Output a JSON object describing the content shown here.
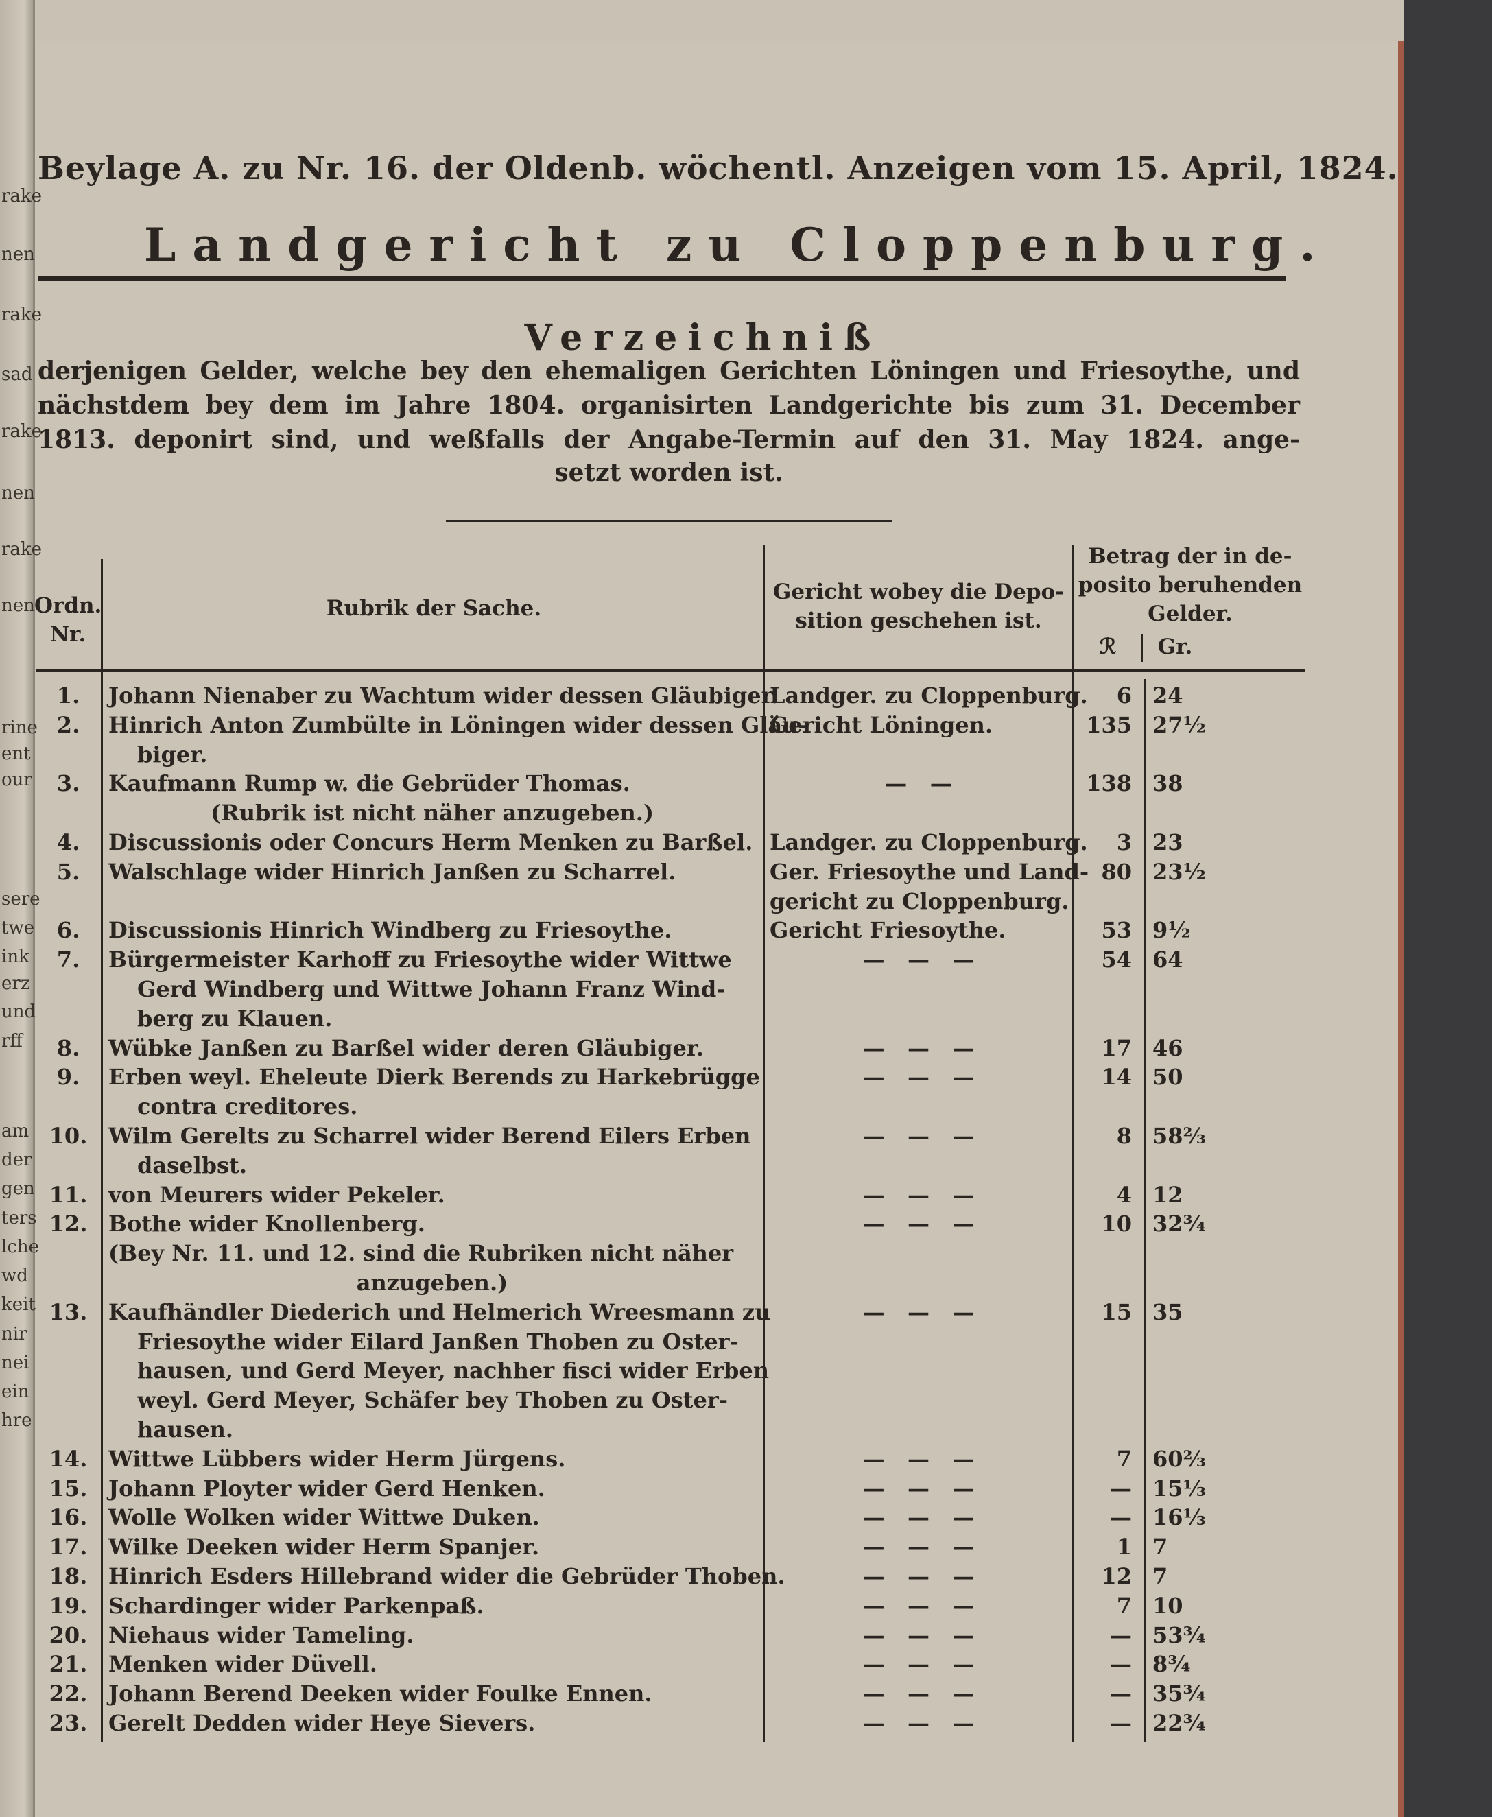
{
  "prev_page_fragments": [
    "rake",
    "nen",
    "rake",
    "sad",
    "rake",
    "nen",
    "rake",
    "nen",
    "rine",
    "ent",
    "our",
    "sere",
    "twe",
    "ink",
    "erz",
    "und",
    "rff",
    "am",
    "der",
    "gen",
    "ters",
    "lche",
    "wd",
    "keit",
    "nir",
    "nei",
    "ein",
    "hre"
  ],
  "header": "Beylage A. zu Nr. 16. der Oldenb. wöchentl. Anzeigen vom 15. April, 1824.",
  "title": "Landgericht zu Cloppenburg.",
  "subtitle": "Verzeichniß",
  "intro_lines": [
    "derjenigen Gelder, welche bey den ehemaligen Gerichten Löningen und Friesoythe, und",
    "nächstdem bey dem im Jahre 1804. organisirten Landgerichte bis zum 31. December",
    "1813. deponirt sind, und weßfalls der Angabe-Termin auf den 31. May 1824. ange-",
    "setzt worden ist."
  ],
  "table": {
    "headers": {
      "nr": [
        "Ordn.",
        "Nr."
      ],
      "rubrik": "Rubrik der Sache.",
      "gericht": [
        "Gericht wobey die Depo-",
        "sition geschehen ist."
      ],
      "betrag": [
        "Betrag der in de-",
        "posito beruhenden",
        "Gelder."
      ],
      "taler": "ℛ",
      "groschen": "Gr."
    },
    "rows": [
      {
        "nr": "1.",
        "rubrik": [
          "Johann Nienaber zu Wachtum wider dessen Gläubiger."
        ],
        "gericht": [
          "Landger. zu Cloppenburg."
        ],
        "taler": "6",
        "groschen": "24"
      },
      {
        "nr": "2.",
        "rubrik": [
          "Hinrich Anton Zumbülte in Löningen wider dessen Gläu-",
          "biger."
        ],
        "gericht": [
          "Gericht Löningen."
        ],
        "taler": "135",
        "groschen": "27½"
      },
      {
        "nr": "3.",
        "rubrik": [
          "Kaufmann Rump w. die Gebrüder Thomas.",
          "(Rubrik ist nicht näher anzugeben.)"
        ],
        "gericht": [
          "—   —"
        ],
        "taler": "138",
        "groschen": "38"
      },
      {
        "nr": "4.",
        "rubrik": [
          "Discussionis oder Concurs Herm Menken zu Barßel."
        ],
        "gericht": [
          "Landger. zu Cloppenburg."
        ],
        "taler": "3",
        "groschen": "23"
      },
      {
        "nr": "5.",
        "rubrik": [
          "Walschlage wider Hinrich Janßen zu Scharrel."
        ],
        "gericht": [
          "Ger. Friesoythe und Land-",
          "gericht zu Cloppenburg."
        ],
        "taler": "80",
        "groschen": "23½"
      },
      {
        "nr": "6.",
        "rubrik": [
          "Discussionis Hinrich Windberg zu Friesoythe."
        ],
        "gericht": [
          "Gericht Friesoythe."
        ],
        "taler": "53",
        "groschen": "9½"
      },
      {
        "nr": "7.",
        "rubrik": [
          "Bürgermeister Karhoff zu Friesoythe wider Wittwe",
          "Gerd Windberg und Wittwe Johann Franz Wind-",
          "berg zu Klauen."
        ],
        "gericht": [
          "—   —   —"
        ],
        "taler": "54",
        "groschen": "64"
      },
      {
        "nr": "8.",
        "rubrik": [
          "Wübke Janßen zu Barßel wider deren Gläubiger."
        ],
        "gericht": [
          "—   —   —"
        ],
        "taler": "17",
        "groschen": "46"
      },
      {
        "nr": "9.",
        "rubrik": [
          "Erben weyl. Eheleute Dierk Berends zu Harkebrügge",
          "contra creditores."
        ],
        "gericht": [
          "—   —   —"
        ],
        "taler": "14",
        "groschen": "50"
      },
      {
        "nr": "10.",
        "rubrik": [
          "Wilm Gerelts zu Scharrel wider Berend Eilers Erben",
          "daselbst."
        ],
        "gericht": [
          "—   —   —"
        ],
        "taler": "8",
        "groschen": "58⅔"
      },
      {
        "nr": "11.",
        "rubrik": [
          "von Meurers wider Pekeler."
        ],
        "gericht": [
          "—   —   —"
        ],
        "taler": "4",
        "groschen": "12"
      },
      {
        "nr": "12.",
        "rubrik": [
          "Bothe wider Knollenberg."
        ],
        "gericht": [
          "—   —   —"
        ],
        "taler": "10",
        "groschen": "32¾"
      },
      {
        "nr": "",
        "rubrik": [
          "(Bey Nr. 11. und 12. sind die Rubriken nicht näher",
          "anzugeben.)"
        ],
        "gericht": [],
        "taler": "",
        "groschen": ""
      },
      {
        "nr": "13.",
        "rubrik": [
          "Kaufhändler Diederich und Helmerich Wreesmann zu",
          "Friesoythe wider Eilard Janßen Thoben zu Oster-",
          "hausen, und Gerd Meyer, nachher fisci wider Erben",
          "weyl. Gerd Meyer, Schäfer bey Thoben zu Oster-",
          "hausen."
        ],
        "gericht": [
          "—   —   —"
        ],
        "taler": "15",
        "groschen": "35"
      },
      {
        "nr": "14.",
        "rubrik": [
          "Wittwe Lübbers wider Herm Jürgens."
        ],
        "gericht": [
          "—   —   —"
        ],
        "taler": "7",
        "groschen": "60⅔"
      },
      {
        "nr": "15.",
        "rubrik": [
          "Johann Ployter wider Gerd Henken."
        ],
        "gericht": [
          "—   —   —"
        ],
        "taler": "—",
        "groschen": "15⅓"
      },
      {
        "nr": "16.",
        "rubrik": [
          "Wolle Wolken wider Wittwe Duken."
        ],
        "gericht": [
          "—   —   —"
        ],
        "taler": "—",
        "groschen": "16⅓"
      },
      {
        "nr": "17.",
        "rubrik": [
          "Wilke Deeken wider Herm Spanjer."
        ],
        "gericht": [
          "—   —   —"
        ],
        "taler": "1",
        "groschen": "7"
      },
      {
        "nr": "18.",
        "rubrik": [
          "Hinrich Esders Hillebrand wider die Gebrüder Thoben."
        ],
        "gericht": [
          "—   —   —"
        ],
        "taler": "12",
        "groschen": "7"
      },
      {
        "nr": "19.",
        "rubrik": [
          "Schardinger wider Parkenpaß."
        ],
        "gericht": [
          "—   —   —"
        ],
        "taler": "7",
        "groschen": "10"
      },
      {
        "nr": "20.",
        "rubrik": [
          "Niehaus wider Tameling."
        ],
        "gericht": [
          "—   —   —"
        ],
        "taler": "—",
        "groschen": "53¾"
      },
      {
        "nr": "21.",
        "rubrik": [
          "Menken wider Düvell."
        ],
        "gericht": [
          "—   —   —"
        ],
        "taler": "—",
        "groschen": "8¾"
      },
      {
        "nr": "22.",
        "rubrik": [
          "Johann Berend Deeken wider Foulke Ennen."
        ],
        "gericht": [
          "—   —   —"
        ],
        "taler": "—",
        "groschen": "35¾"
      },
      {
        "nr": "23.",
        "rubrik": [
          "Gerelt Dedden wider Heye Sievers."
        ],
        "gericht": [
          "—   —   —"
        ],
        "taler": "—",
        "groschen": "22¾"
      }
    ]
  }
}
